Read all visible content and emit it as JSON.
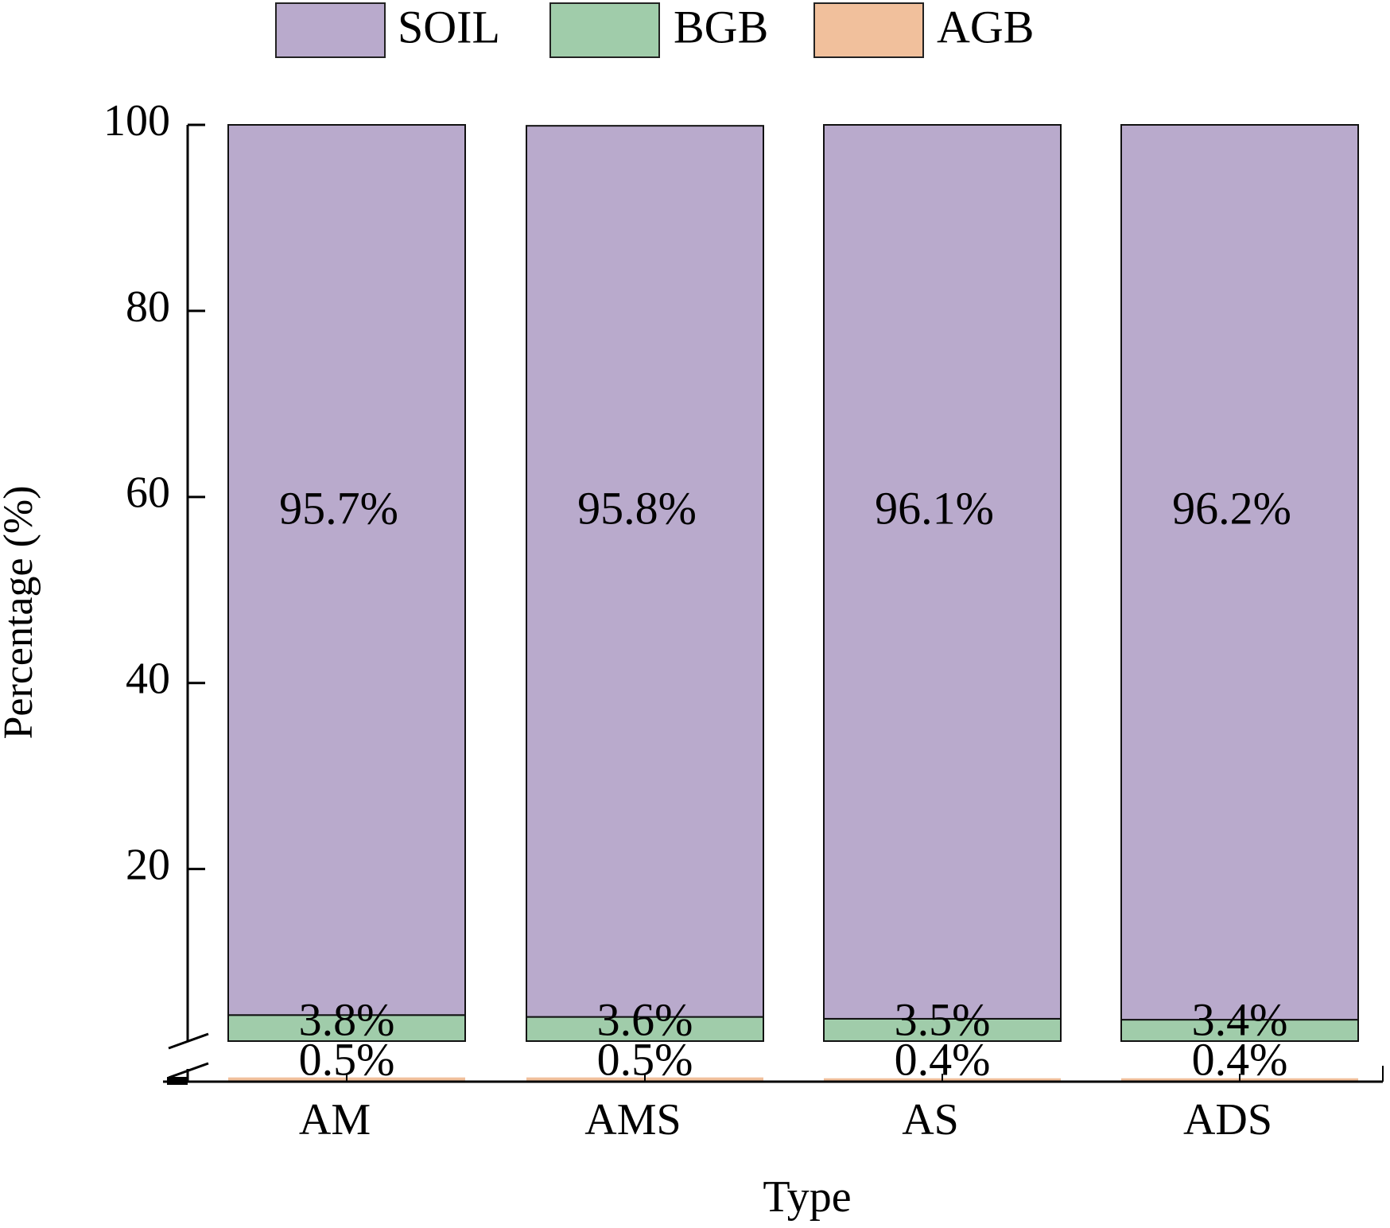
{
  "chart_data": {
    "type": "stacked_bar",
    "ylabel": "Percentage (%)",
    "xlabel": "Type",
    "categories": [
      "AM",
      "AMS",
      "AS",
      "ADS"
    ],
    "series": [
      {
        "name": "SOIL",
        "color": "#b9aacc",
        "values": [
          95.7,
          95.8,
          96.1,
          96.2
        ],
        "value_labels": [
          "95.7%",
          "95.8%",
          "96.1%",
          "96.2%"
        ]
      },
      {
        "name": "BGB",
        "color": "#a0ccaa",
        "values": [
          3.8,
          3.6,
          3.5,
          3.4
        ],
        "value_labels": [
          "3.8%",
          "3.6%",
          "3.5%",
          "3.4%"
        ]
      },
      {
        "name": "AGB",
        "color": "#f1c09c",
        "values": [
          0.5,
          0.5,
          0.4,
          0.4
        ],
        "value_labels": [
          "0.5%",
          "0.5%",
          "0.4%",
          "0.4%"
        ]
      }
    ],
    "ylim": [
      1.5,
      100
    ],
    "ylim_lower": [
      0,
      1.5
    ],
    "yticks": [
      20,
      40,
      60,
      80,
      100
    ],
    "legend": "top"
  }
}
